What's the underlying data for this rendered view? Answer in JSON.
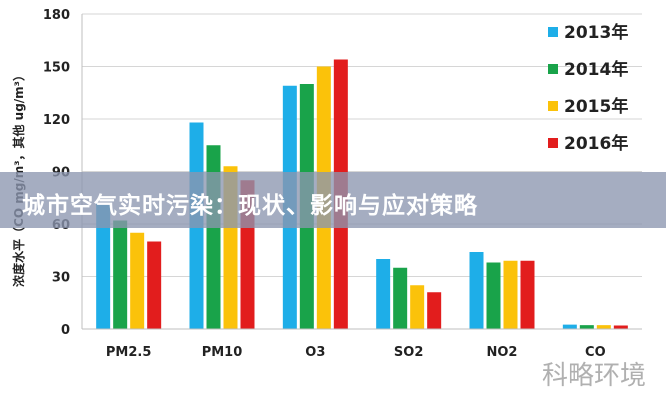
{
  "chart_data": {
    "type": "bar",
    "categories": [
      "PM2.5",
      "PM10",
      "O3",
      "SO2",
      "NO2",
      "CO"
    ],
    "series": [
      {
        "name": "2013年",
        "color": "#1eaee8",
        "values": [
          72,
          118,
          139,
          40,
          44,
          2.5
        ]
      },
      {
        "name": "2014年",
        "color": "#19a34a",
        "values": [
          62,
          105,
          140,
          35,
          38,
          2.2
        ]
      },
      {
        "name": "2015年",
        "color": "#fbc20a",
        "values": [
          55,
          93,
          150,
          25,
          39,
          2.2
        ]
      },
      {
        "name": "2016年",
        "color": "#e21d1d",
        "values": [
          50,
          85,
          154,
          21,
          39,
          2.0
        ]
      }
    ],
    "ylabel": "浓度水平（CO mg/m³，其他 ug/m³）",
    "ylim": [
      0,
      180
    ],
    "yticks": [
      0,
      30,
      60,
      90,
      120,
      150,
      180
    ],
    "grid": true,
    "legend_position": "top-right"
  },
  "banner": {
    "title": "城市空气实时污染：现状、影响与应对策略"
  },
  "watermark": "科略环境"
}
